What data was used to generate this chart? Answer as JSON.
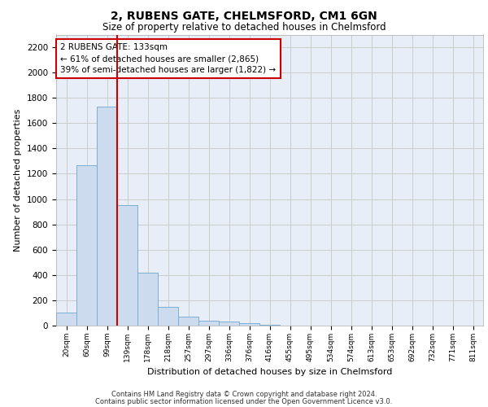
{
  "title1": "2, RUBENS GATE, CHELMSFORD, CM1 6GN",
  "title2": "Size of property relative to detached houses in Chelmsford",
  "xlabel": "Distribution of detached houses by size in Chelmsford",
  "ylabel": "Number of detached properties",
  "footer1": "Contains HM Land Registry data © Crown copyright and database right 2024.",
  "footer2": "Contains public sector information licensed under the Open Government Licence v3.0.",
  "annotation_title": "2 RUBENS GATE: 133sqm",
  "annotation_line1": "← 61% of detached houses are smaller (2,865)",
  "annotation_line2": "39% of semi-detached houses are larger (1,822) →",
  "bar_labels": [
    "20sqm",
    "60sqm",
    "99sqm",
    "139sqm",
    "178sqm",
    "218sqm",
    "257sqm",
    "297sqm",
    "336sqm",
    "376sqm",
    "416sqm",
    "455sqm",
    "495sqm",
    "534sqm",
    "574sqm",
    "613sqm",
    "653sqm",
    "692sqm",
    "732sqm",
    "771sqm",
    "811sqm"
  ],
  "bar_heights": [
    100,
    1265,
    1730,
    950,
    415,
    150,
    70,
    40,
    30,
    20,
    5,
    0,
    0,
    0,
    0,
    0,
    0,
    0,
    0,
    0,
    0
  ],
  "bar_color": "#ccdcee",
  "bar_edge_color": "#7aafd4",
  "vline_color": "#cc0000",
  "vline_bin": 2,
  "annotation_box_color": "#ffffff",
  "annotation_box_edge": "#cc0000",
  "ylim": [
    0,
    2300
  ],
  "yticks": [
    0,
    200,
    400,
    600,
    800,
    1000,
    1200,
    1400,
    1600,
    1800,
    2000,
    2200
  ],
  "grid_color": "#cccccc",
  "background_color": "#e8eef8"
}
